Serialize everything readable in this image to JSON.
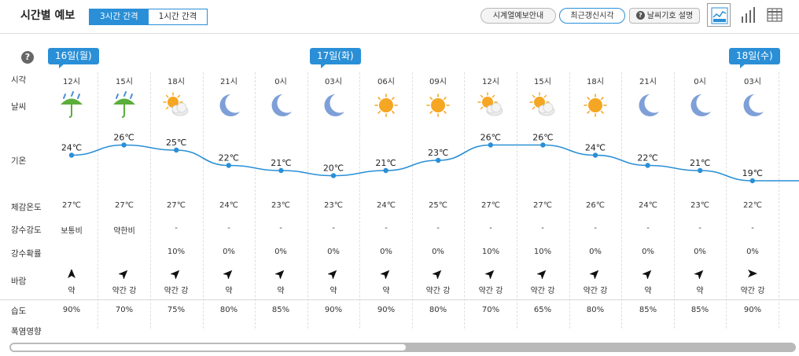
{
  "header": {
    "title": "시간별 예보",
    "interval_tabs": [
      "3시간 간격",
      "1시간 간격"
    ],
    "buttons": {
      "timeseries_guide": "시계열예보안내",
      "recent_update": "최근갱신시각",
      "weather_symbol_help": "날씨기호 설명"
    },
    "help_symbol": "?"
  },
  "row_labels": {
    "time": "시각",
    "weather": "날씨",
    "temperature": "기온",
    "feels_like": "체감온도",
    "precip_intensity": "강수강도",
    "precip_prob": "강수확률",
    "wind": "바람",
    "humidity": "습도",
    "heat_impact": "폭염영향"
  },
  "dates": [
    {
      "label": "16일(월)",
      "col": 0
    },
    {
      "label": "17일(화)",
      "col": 5
    },
    {
      "label": "18일(수)",
      "col": 13
    }
  ],
  "columns": [
    {
      "time": "12시",
      "icon": "umbrella-rain-icon",
      "temp": "24℃",
      "temp_value": 24,
      "feels": "27℃",
      "precip": "보통비",
      "prob": "",
      "wind_dir": "north",
      "wind": "약",
      "humidity": "90%"
    },
    {
      "time": "15시",
      "icon": "umbrella-rain-icon",
      "temp": "26℃",
      "temp_value": 26,
      "feels": "27℃",
      "precip": "약한비",
      "prob": "",
      "wind_dir": "north-east",
      "wind": "약간 강",
      "humidity": "70%"
    },
    {
      "time": "18시",
      "icon": "partly-cloudy-sun-icon",
      "temp": "25℃",
      "temp_value": 25,
      "feels": "27℃",
      "precip": "-",
      "prob": "10%",
      "wind_dir": "north-east",
      "wind": "약간 강",
      "humidity": "75%"
    },
    {
      "time": "21시",
      "icon": "moon-icon",
      "temp": "22℃",
      "temp_value": 22,
      "feels": "24℃",
      "precip": "-",
      "prob": "0%",
      "wind_dir": "north-east",
      "wind": "약",
      "humidity": "80%"
    },
    {
      "time": "0시",
      "icon": "moon-icon",
      "temp": "21℃",
      "temp_value": 21,
      "feels": "23℃",
      "precip": "-",
      "prob": "0%",
      "wind_dir": "north-east",
      "wind": "약",
      "humidity": "85%"
    },
    {
      "time": "03시",
      "icon": "moon-icon",
      "temp": "20℃",
      "temp_value": 20,
      "feels": "23℃",
      "precip": "-",
      "prob": "0%",
      "wind_dir": "north-east",
      "wind": "약",
      "humidity": "90%"
    },
    {
      "time": "06시",
      "icon": "sun-icon",
      "temp": "21℃",
      "temp_value": 21,
      "feels": "24℃",
      "precip": "-",
      "prob": "0%",
      "wind_dir": "north-east",
      "wind": "약",
      "humidity": "90%"
    },
    {
      "time": "09시",
      "icon": "sun-icon",
      "temp": "23℃",
      "temp_value": 23,
      "feels": "25℃",
      "precip": "-",
      "prob": "0%",
      "wind_dir": "north-east",
      "wind": "약간 강",
      "humidity": "80%"
    },
    {
      "time": "12시",
      "icon": "partly-cloudy-sun-icon",
      "temp": "26℃",
      "temp_value": 26,
      "feels": "27℃",
      "precip": "-",
      "prob": "10%",
      "wind_dir": "north-east",
      "wind": "약간 강",
      "humidity": "70%"
    },
    {
      "time": "15시",
      "icon": "partly-cloudy-sun-icon",
      "temp": "26℃",
      "temp_value": 26,
      "feels": "27℃",
      "precip": "-",
      "prob": "10%",
      "wind_dir": "north-east",
      "wind": "약간 강",
      "humidity": "65%"
    },
    {
      "time": "18시",
      "icon": "sun-icon",
      "temp": "24℃",
      "temp_value": 24,
      "feels": "26℃",
      "precip": "-",
      "prob": "0%",
      "wind_dir": "north-east",
      "wind": "약간 강",
      "humidity": "80%"
    },
    {
      "time": "21시",
      "icon": "moon-icon",
      "temp": "22℃",
      "temp_value": 22,
      "feels": "24℃",
      "precip": "-",
      "prob": "0%",
      "wind_dir": "north-east",
      "wind": "약",
      "humidity": "85%"
    },
    {
      "time": "0시",
      "icon": "moon-icon",
      "temp": "21℃",
      "temp_value": 21,
      "feels": "23℃",
      "precip": "-",
      "prob": "0%",
      "wind_dir": "north-east",
      "wind": "약",
      "humidity": "85%"
    },
    {
      "time": "03시",
      "icon": "moon-icon",
      "temp": "19℃",
      "temp_value": 19,
      "feels": "22℃",
      "precip": "-",
      "prob": "0%",
      "wind_dir": "east",
      "wind": "약간 강",
      "humidity": "90%"
    }
  ],
  "colors": {
    "accent": "#2a8fd6",
    "temp_line": "#2a8fd6",
    "sun": "#f5a623",
    "moon": "#7e9fd8",
    "umbrella": "#5cae3a"
  }
}
